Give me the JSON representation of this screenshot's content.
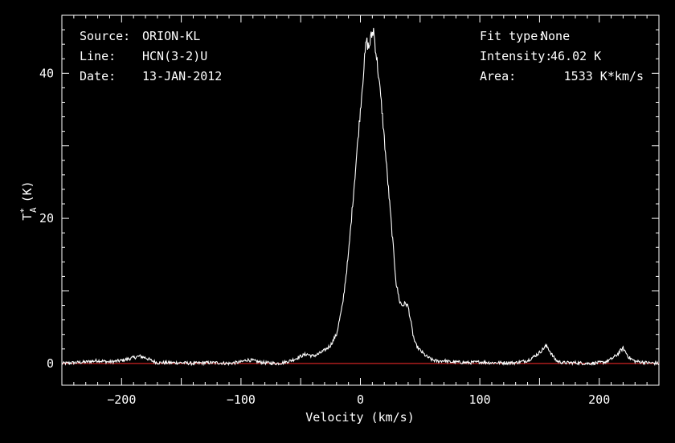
{
  "chart_data": {
    "type": "line",
    "title": "",
    "xlabel": "Velocity (km/s)",
    "ylabel": "T*A (K)",
    "ylabel_parts": {
      "main": "T",
      "sub": "A",
      "sup": "*",
      "unit": "(K)"
    },
    "xlim": [
      -250,
      250
    ],
    "ylim": [
      -3,
      48
    ],
    "x_ticks": [
      -200,
      -100,
      0,
      100,
      200
    ],
    "x_tick_labels": [
      "−200",
      "−100",
      "0",
      "100",
      "200"
    ],
    "y_ticks": [
      0,
      20,
      40
    ],
    "y_tick_labels": [
      "0",
      "20",
      "40"
    ],
    "grid": false,
    "baseline": {
      "value": 0,
      "color": "#cc2222"
    },
    "line_color": "#ffffff",
    "background": "#000000",
    "series": [
      {
        "x": [
          -250,
          -240,
          -230,
          -220,
          -210,
          -200,
          -195,
          -190,
          -185,
          -180,
          -175,
          -170,
          -160,
          -150,
          -140,
          -130,
          -120,
          -110,
          -100,
          -95,
          -90,
          -85,
          -80,
          -70,
          -65,
          -60,
          -55,
          -50,
          -45,
          -40,
          -35,
          -30,
          -25,
          -20,
          -15,
          -10,
          -5,
          0,
          3,
          5,
          7,
          9,
          11,
          13,
          15,
          18,
          20,
          22,
          25,
          28,
          30,
          33,
          35,
          38,
          40,
          42,
          44,
          46,
          48,
          50,
          55,
          60,
          65,
          70,
          75,
          80,
          90,
          100,
          110,
          120,
          130,
          140,
          145,
          150,
          153,
          155,
          157,
          160,
          163,
          165,
          170,
          180,
          190,
          200,
          205,
          210,
          215,
          218,
          220,
          222,
          225,
          230,
          235,
          240,
          250
        ],
        "y": [
          0.0,
          0.1,
          0.2,
          0.4,
          0.2,
          0.4,
          0.6,
          0.8,
          1.0,
          0.8,
          0.4,
          0.1,
          0.1,
          0.1,
          0.0,
          0.1,
          0.1,
          0.0,
          0.2,
          0.5,
          0.4,
          0.2,
          0.1,
          0.0,
          0.1,
          0.3,
          0.6,
          1.0,
          1.3,
          1.0,
          1.3,
          1.8,
          2.5,
          4.0,
          8.0,
          15.0,
          25.0,
          35.0,
          41.0,
          44.5,
          43.5,
          45.0,
          46.0,
          43.0,
          40.0,
          35.0,
          31.0,
          27.0,
          21.0,
          15.0,
          11.0,
          8.5,
          8.0,
          8.3,
          7.8,
          6.0,
          4.0,
          2.7,
          2.2,
          1.8,
          1.0,
          0.5,
          0.3,
          0.4,
          0.2,
          0.2,
          0.1,
          0.2,
          0.1,
          0.1,
          0.1,
          0.4,
          0.9,
          1.5,
          2.0,
          2.4,
          2.2,
          1.3,
          0.6,
          0.3,
          0.1,
          0.1,
          0.0,
          0.1,
          0.2,
          0.6,
          1.2,
          1.8,
          2.1,
          1.6,
          0.8,
          0.3,
          0.2,
          0.1,
          0.0
        ]
      }
    ]
  },
  "info_left": {
    "source_label": "Source:",
    "source_value": "ORION-KL",
    "line_label": "Line:",
    "line_value": "HCN(3-2)U",
    "date_label": "Date:",
    "date_value": "13-JAN-2012"
  },
  "info_right": {
    "fit_label": "Fit type:",
    "fit_value": "None",
    "intensity_label": "Intensity:",
    "intensity_value": "46.02 K",
    "area_label": "Area:",
    "area_value": "1533 K*km/s"
  }
}
